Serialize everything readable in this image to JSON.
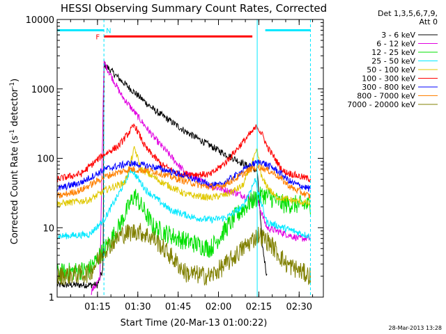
{
  "chart_data": {
    "type": "line",
    "title": "HESSI Observing Summary Count Rates, Corrected",
    "xlabel": "Start Time (20-Mar-13 01:00:22)",
    "ylabel": "Corrected Count Rate (s",
    "ylabel_sup1": "-1",
    "ylabel_mid": " detector",
    "ylabel_sup2": "-1",
    "ylabel_end": ")",
    "y_scale": "log",
    "ylim": [
      1,
      10000
    ],
    "xlim": [
      1.0,
      2.65
    ],
    "x_ticks": [
      {
        "value": 1.25,
        "label": "01:15"
      },
      {
        "value": 1.5,
        "label": "01:30"
      },
      {
        "value": 1.75,
        "label": "01:45"
      },
      {
        "value": 2.0,
        "label": "02:00"
      },
      {
        "value": 2.25,
        "label": "02:15"
      },
      {
        "value": 2.5,
        "label": "02:30"
      }
    ],
    "y_ticks": [
      {
        "value": 1,
        "label": "1"
      },
      {
        "value": 10,
        "label": "10"
      },
      {
        "value": 100,
        "label": "100"
      },
      {
        "value": 1000,
        "label": "1000"
      },
      {
        "value": 10000,
        "label": "10000"
      }
    ],
    "legend_header": [
      "Det 1,3,5,6,7,9,",
      "Att 0"
    ],
    "legend_position": "right",
    "annotations": {
      "flare_flag": "F",
      "night_flag": "N",
      "date_stamp": "28-Mar-2013 13:28"
    },
    "night_bars": [
      [
        1.0,
        1.29
      ],
      [
        2.29,
        2.57
      ]
    ],
    "flare_bar": [
      1.29,
      2.21
    ],
    "vlines": [
      {
        "x": 1.29,
        "style": "dashed"
      },
      {
        "x": 2.24,
        "style": "solid"
      },
      {
        "x": 2.57,
        "style": "dashed"
      }
    ],
    "series": [
      {
        "name": "3 - 6 keV",
        "color": "#000000",
        "values": [
          [
            1.0,
            1.5
          ],
          [
            1.25,
            1.5
          ],
          [
            1.285,
            2.5
          ],
          [
            1.29,
            2300
          ],
          [
            1.4,
            1300
          ],
          [
            1.6,
            500
          ],
          [
            1.8,
            240
          ],
          [
            2.0,
            130
          ],
          [
            2.15,
            85
          ],
          [
            2.24,
            65
          ],
          [
            2.27,
            6
          ],
          [
            2.3,
            2
          ]
        ]
      },
      {
        "name": "6 - 12 keV",
        "color": "#e100e1",
        "values": [
          [
            1.21,
            1.2
          ],
          [
            1.265,
            1.8
          ],
          [
            1.29,
            2400
          ],
          [
            1.4,
            800
          ],
          [
            1.6,
            200
          ],
          [
            1.8,
            60
          ],
          [
            1.95,
            40
          ],
          [
            2.1,
            32
          ],
          [
            2.24,
            25
          ],
          [
            2.3,
            10
          ],
          [
            2.5,
            7
          ],
          [
            2.57,
            7
          ]
        ]
      },
      {
        "name": "12 - 25 keV",
        "color": "#00e000",
        "values": [
          [
            1.0,
            2.2
          ],
          [
            1.2,
            2.5
          ],
          [
            1.28,
            4.5
          ],
          [
            1.32,
            6
          ],
          [
            1.38,
            10
          ],
          [
            1.48,
            30
          ],
          [
            1.6,
            10
          ],
          [
            1.75,
            7
          ],
          [
            1.95,
            5
          ],
          [
            2.1,
            14
          ],
          [
            2.2,
            24
          ],
          [
            2.28,
            30
          ],
          [
            2.4,
            22
          ],
          [
            2.57,
            21
          ]
        ]
      },
      {
        "name": "25 - 50 keV",
        "color": "#00e8ff",
        "values": [
          [
            1.0,
            7.5
          ],
          [
            1.2,
            8
          ],
          [
            1.29,
            13
          ],
          [
            1.38,
            30
          ],
          [
            1.46,
            70
          ],
          [
            1.55,
            35
          ],
          [
            1.7,
            18
          ],
          [
            1.85,
            14
          ],
          [
            1.95,
            13
          ],
          [
            2.05,
            14
          ],
          [
            2.15,
            20
          ],
          [
            2.23,
            50
          ],
          [
            2.25,
            30
          ],
          [
            2.3,
            12
          ],
          [
            2.4,
            10
          ],
          [
            2.57,
            7.5
          ]
        ]
      },
      {
        "name": "50 - 100 keV",
        "color": "#e0c800",
        "values": [
          [
            1.0,
            22
          ],
          [
            1.2,
            25
          ],
          [
            1.3,
            35
          ],
          [
            1.42,
            45
          ],
          [
            1.48,
            140
          ],
          [
            1.52,
            70
          ],
          [
            1.65,
            45
          ],
          [
            1.8,
            30
          ],
          [
            1.95,
            27
          ],
          [
            2.05,
            30
          ],
          [
            2.15,
            40
          ],
          [
            2.24,
            130
          ],
          [
            2.27,
            50
          ],
          [
            2.35,
            28
          ],
          [
            2.45,
            25
          ],
          [
            2.57,
            22
          ]
        ]
      },
      {
        "name": "100 - 300 keV",
        "color": "#ff0000",
        "values": [
          [
            1.0,
            50
          ],
          [
            1.15,
            60
          ],
          [
            1.28,
            110
          ],
          [
            1.38,
            150
          ],
          [
            1.48,
            300
          ],
          [
            1.55,
            140
          ],
          [
            1.65,
            80
          ],
          [
            1.75,
            60
          ],
          [
            1.95,
            58
          ],
          [
            2.05,
            90
          ],
          [
            2.15,
            170
          ],
          [
            2.24,
            290
          ],
          [
            2.28,
            200
          ],
          [
            2.3,
            150
          ],
          [
            2.4,
            65
          ],
          [
            2.5,
            55
          ],
          [
            2.57,
            50
          ]
        ]
      },
      {
        "name": "300 - 800 keV",
        "color": "#0000ff",
        "values": [
          [
            1.0,
            36
          ],
          [
            1.15,
            45
          ],
          [
            1.3,
            70
          ],
          [
            1.45,
            85
          ],
          [
            1.6,
            75
          ],
          [
            1.75,
            60
          ],
          [
            1.9,
            45
          ],
          [
            2.0,
            40
          ],
          [
            2.1,
            55
          ],
          [
            2.2,
            80
          ],
          [
            2.26,
            90
          ],
          [
            2.35,
            70
          ],
          [
            2.45,
            45
          ],
          [
            2.57,
            36
          ]
        ]
      },
      {
        "name": "800 - 7000 keV",
        "color": "#ff8000",
        "values": [
          [
            1.0,
            28
          ],
          [
            1.15,
            35
          ],
          [
            1.3,
            55
          ],
          [
            1.45,
            70
          ],
          [
            1.6,
            65
          ],
          [
            1.75,
            50
          ],
          [
            1.9,
            40
          ],
          [
            2.0,
            38
          ],
          [
            2.1,
            50
          ],
          [
            2.2,
            70
          ],
          [
            2.26,
            75
          ],
          [
            2.35,
            60
          ],
          [
            2.45,
            38
          ],
          [
            2.57,
            28
          ]
        ]
      },
      {
        "name": "7000 - 20000 keV",
        "color": "#808000",
        "values": [
          [
            1.0,
            2
          ],
          [
            1.2,
            2.2
          ],
          [
            1.3,
            5
          ],
          [
            1.4,
            8
          ],
          [
            1.5,
            9
          ],
          [
            1.6,
            7
          ],
          [
            1.7,
            4
          ],
          [
            1.8,
            2.2
          ],
          [
            1.95,
            2
          ],
          [
            2.05,
            3
          ],
          [
            2.15,
            5
          ],
          [
            2.25,
            8
          ],
          [
            2.32,
            6
          ],
          [
            2.42,
            3
          ],
          [
            2.57,
            2
          ]
        ]
      }
    ]
  }
}
